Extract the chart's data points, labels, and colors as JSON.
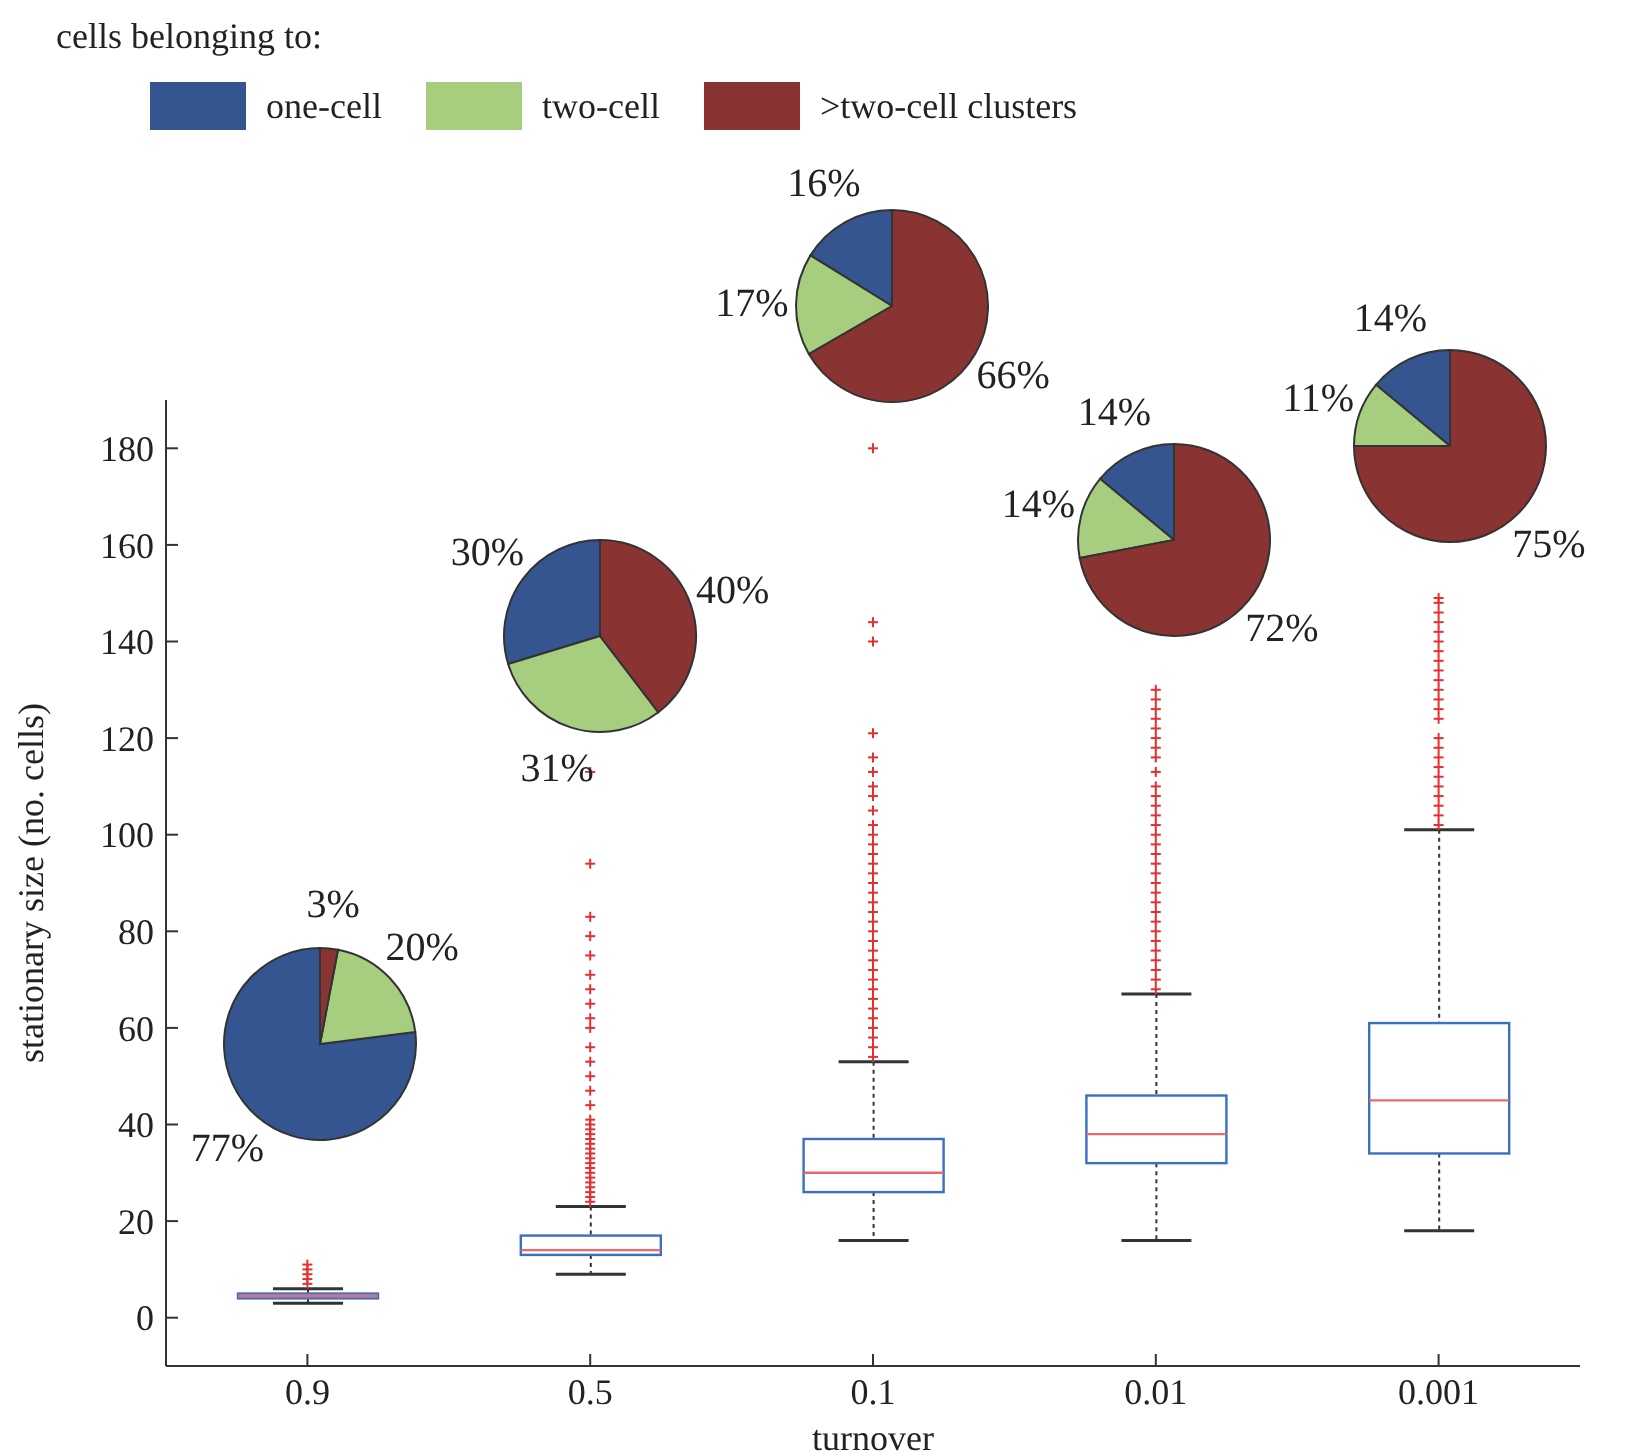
{
  "chart_data": [
    {
      "type": "box",
      "categories": [
        "0.9",
        "0.5",
        "0.1",
        "0.01",
        "0.001"
      ],
      "xlabel": "turnover",
      "ylabel": "stationary size (no. cells)",
      "ylim": [
        -10,
        190
      ],
      "yticks": [
        0,
        20,
        40,
        60,
        80,
        100,
        120,
        140,
        160,
        180
      ],
      "grid": false,
      "color": "#3a6fc4",
      "boxes": [
        {
          "low": 3,
          "q1": 4,
          "median": 4.5,
          "q3": 5,
          "high": 6,
          "outliers": [
            7,
            8,
            9,
            10,
            11
          ]
        },
        {
          "low": 9,
          "q1": 13,
          "median": 14,
          "q3": 17,
          "high": 23,
          "outliers": [
            24,
            25,
            26,
            27,
            28,
            29,
            30,
            31,
            32,
            33,
            34,
            35,
            36,
            37,
            38,
            39,
            40,
            41,
            44,
            47,
            50,
            53,
            56,
            60,
            62,
            65,
            68,
            71,
            75,
            79,
            83,
            94,
            113
          ]
        },
        {
          "low": 16,
          "q1": 26,
          "median": 30,
          "q3": 37,
          "high": 53,
          "outliers": [
            54,
            56,
            58,
            60,
            62,
            64,
            66,
            68,
            70,
            72,
            74,
            76,
            78,
            80,
            82,
            84,
            86,
            88,
            90,
            92,
            94,
            96,
            98,
            100,
            102,
            105,
            108,
            110,
            113,
            116,
            121,
            140,
            144,
            180
          ]
        },
        {
          "low": 16,
          "q1": 32,
          "median": 38,
          "q3": 46,
          "high": 67,
          "outliers": [
            68,
            70,
            72,
            74,
            76,
            78,
            80,
            82,
            84,
            86,
            88,
            90,
            92,
            94,
            96,
            98,
            100,
            102,
            104,
            106,
            108,
            110,
            113,
            116,
            118,
            120,
            122,
            124,
            126,
            128,
            130
          ]
        },
        {
          "low": 18,
          "q1": 34,
          "median": 45,
          "q3": 61,
          "high": 101,
          "outliers": [
            102,
            104,
            106,
            108,
            110,
            112,
            114,
            116,
            118,
            120,
            124,
            126,
            128,
            130,
            132,
            134,
            136,
            138,
            140,
            142,
            144,
            146,
            148,
            149
          ]
        }
      ]
    },
    {
      "type": "pie",
      "legend_title": "cells belonging to:",
      "legend": "top right",
      "categories": [
        "one-cell",
        "two-cell",
        ">two-cell clusters"
      ],
      "values": [
        77,
        20,
        3
      ],
      "colors": [
        "#34558f",
        "#a7cd7f",
        "#893333"
      ],
      "value_labels": [
        "77%",
        "20%",
        "3%"
      ]
    },
    {
      "type": "pie",
      "categories": [
        null,
        null,
        null
      ],
      "values": [
        30,
        31,
        40
      ],
      "colors": [
        "#34558f",
        "#a7cd7f",
        "#893333"
      ],
      "value_labels": [
        "30%",
        "31%",
        "40%"
      ]
    },
    {
      "type": "pie",
      "categories": [
        null,
        null,
        null
      ],
      "values": [
        16,
        17,
        66
      ],
      "colors": [
        "#34558f",
        "#a7cd7f",
        "#893333"
      ],
      "value_labels": [
        "16%",
        "17%",
        "66%"
      ]
    },
    {
      "type": "pie",
      "categories": [
        null,
        null,
        null
      ],
      "values": [
        14,
        14,
        72
      ],
      "colors": [
        "#34558f",
        "#a7cd7f",
        "#893333"
      ],
      "value_labels": [
        "14%",
        "14%",
        "72%"
      ]
    },
    {
      "type": "pie",
      "categories": [
        null,
        null,
        null
      ],
      "values": [
        14,
        11,
        75
      ],
      "colors": [
        "#34558f",
        "#a7cd7f",
        "#893333"
      ],
      "value_labels": [
        "14%",
        "11%",
        "75%"
      ]
    }
  ]
}
